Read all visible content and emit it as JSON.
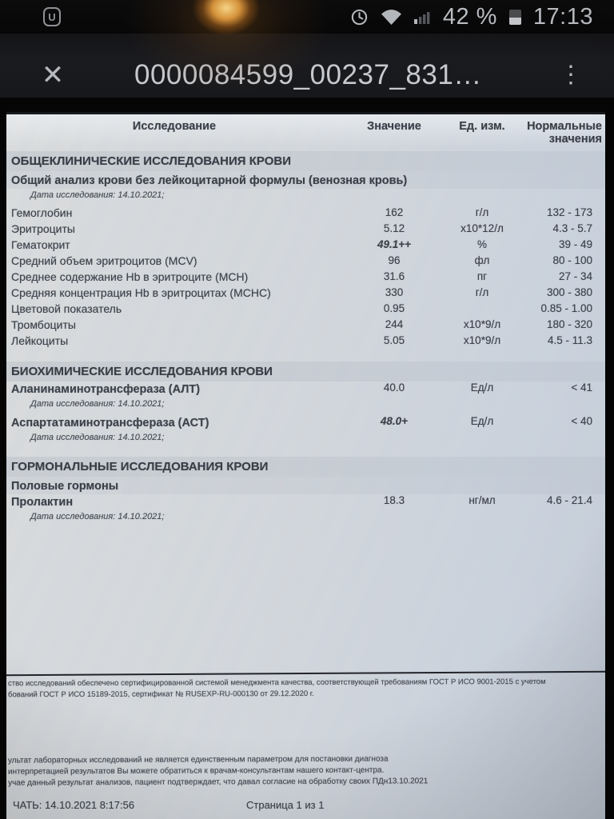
{
  "status_bar": {
    "time": "17:13",
    "battery_percent": "42 %",
    "icons": {
      "app_badge_glyph": "U",
      "alarm": "alarm-clock-outline",
      "wifi": "wifi-fan-filled",
      "signal": "cellular-bars-partial",
      "battery": "battery-vertical-42"
    }
  },
  "app_bar": {
    "close_icon": "✕",
    "title": "0000084599_00237_831…",
    "menu_icon": "⋮"
  },
  "document": {
    "columns": [
      "Исследование",
      "Значение",
      "Ед. изм.",
      "Нормальные значения"
    ],
    "sections": [
      {
        "title": "ОБЩЕКЛИНИЧЕСКИЕ ИССЛЕДОВАНИЯ КРОВИ",
        "items": [
          {
            "type": "subtitle",
            "text": "Общий анализ крови без лейкоцитарной формулы (венозная кровь)"
          },
          {
            "type": "date",
            "text": "Дата исследования: 14.10.2021;"
          },
          {
            "type": "row",
            "name": "Гемоглобин",
            "value": "162",
            "unit": "г/л",
            "range": "132 - 173"
          },
          {
            "type": "row",
            "name": "Эритроциты",
            "value": "5.12",
            "unit": "х10*12/л",
            "range": "4.3 - 5.7"
          },
          {
            "type": "row",
            "name": "Гематокрит",
            "value": "49.1++",
            "flag": true,
            "unit": "%",
            "range": "39 - 49"
          },
          {
            "type": "row",
            "name": "Средний объем эритроцитов (MCV)",
            "value": "96",
            "unit": "фл",
            "range": "80 - 100"
          },
          {
            "type": "row",
            "name": "Среднее содержание Hb в эритроците (MCH)",
            "value": "31.6",
            "unit": "пг",
            "range": "27 - 34"
          },
          {
            "type": "row",
            "name": "Средняя концентрация Hb в эритроцитах (MCHC)",
            "value": "330",
            "unit": "г/л",
            "range": "300 - 380"
          },
          {
            "type": "row",
            "name": "Цветовой показатель",
            "value": "0.95",
            "unit": "",
            "range": "0.85 - 1.00"
          },
          {
            "type": "row",
            "name": "Тромбоциты",
            "value": "244",
            "unit": "х10*9/л",
            "range": "180 - 320"
          },
          {
            "type": "row",
            "name": "Лейкоциты",
            "value": "5.05",
            "unit": "х10*9/л",
            "range": "4.5 - 11.3"
          }
        ]
      },
      {
        "title": "БИОХИМИЧЕСКИЕ ИССЛЕДОВАНИЯ КРОВИ",
        "items": [
          {
            "type": "row",
            "name": "Аланинаминотрансфераза (АЛТ)",
            "name_bold": true,
            "value": "40.0",
            "unit": "Ед/л",
            "range": "< 41"
          },
          {
            "type": "date",
            "text": "Дата исследования: 14.10.2021;"
          },
          {
            "type": "row",
            "name": "Аспартатаминотрансфераза (АСТ)",
            "name_bold": true,
            "value": "48.0+",
            "flag": true,
            "unit": "Ед/л",
            "range": "< 40"
          },
          {
            "type": "date",
            "text": "Дата исследования: 14.10.2021;"
          }
        ]
      },
      {
        "title": "ГОРМОНАЛЬНЫЕ ИССЛЕДОВАНИЯ КРОВИ",
        "items": [
          {
            "type": "subtitle",
            "text": "Половые гормоны"
          },
          {
            "type": "row",
            "name": "Пролактин",
            "name_bold": true,
            "value": "18.3",
            "unit": "нг/мл",
            "range": "4.6 - 21.4"
          },
          {
            "type": "date",
            "text": "Дата исследования: 14.10.2021;"
          }
        ]
      }
    ],
    "footer": {
      "cert_lines": [
        "ство исследований обеспечено сертифицированной системой менеджмента качества, соответствующей требованиям ГОСТ Р ИСО 9001-2015 с учетом",
        "бований ГОСТ Р ИСО 15189-2015, сертификат № RUSEXP-RU-000130 от 29.12.2020 г."
      ],
      "notes": [
        "ультат лабораторных исследований не является единственным параметром для постановки диагноза",
        "интерпретацией результатов Вы можете обратиться к врачам-консультантам нашего контакт-центра.",
        "учае данный результат анализов, пациент подтверждает, что давал согласие на обработку своих ПДн13.10.2021"
      ],
      "print_info": "ЧАТЬ: 14.10.2021 8:17:56",
      "page_info": "Страница 1 из 1"
    }
  }
}
